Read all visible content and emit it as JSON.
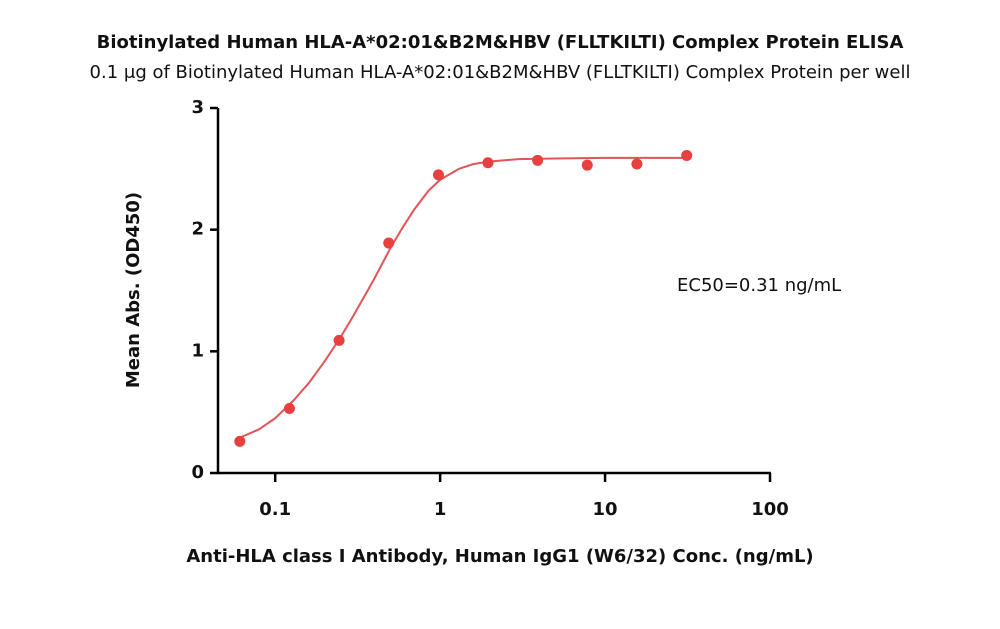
{
  "chart_data": {
    "type": "scatter",
    "title": "Biotinylated Human HLA-A*02:01&B2M&HBV (FLLTKILTI) Complex Protein ELISA",
    "subtitle": "0.1 μg of Biotinylated Human HLA-A*02:01&B2M&HBV (FLLTKILTI) Complex Protein per well",
    "x_label": "Anti-HLA class I Antibody, Human IgG1 (W6/32) Conc. (ng/mL)",
    "y_label": "Mean Abs. (OD450)",
    "annotation": "EC50=0.31 ng/mL",
    "x": [
      0.061,
      0.122,
      0.244,
      0.488,
      0.977,
      1.95,
      3.9,
      7.8,
      15.6,
      31.25
    ],
    "values": [
      0.26,
      0.53,
      1.09,
      1.89,
      2.45,
      2.55,
      2.57,
      2.53,
      2.54,
      2.61
    ],
    "color": "#e8403f",
    "curve": {
      "x": [
        0.061,
        0.08,
        0.1,
        0.13,
        0.16,
        0.2,
        0.25,
        0.3,
        0.35,
        0.4,
        0.5,
        0.6,
        0.7,
        0.85,
        1,
        1.3,
        1.6,
        2,
        3,
        5,
        10,
        31.25
      ],
      "values": [
        0.29,
        0.36,
        0.45,
        0.6,
        0.74,
        0.92,
        1.12,
        1.3,
        1.46,
        1.6,
        1.85,
        2.03,
        2.17,
        2.32,
        2.41,
        2.5,
        2.54,
        2.56,
        2.58,
        2.585,
        2.59,
        2.59
      ],
      "color": "#e05555"
    },
    "xscale": "log",
    "xlim": [
      0.045,
      100
    ],
    "ylim": [
      0,
      3
    ],
    "xticks": [
      0.1,
      1,
      10,
      100
    ],
    "yticks": [
      0,
      1,
      2,
      3
    ],
    "grid": false
  }
}
